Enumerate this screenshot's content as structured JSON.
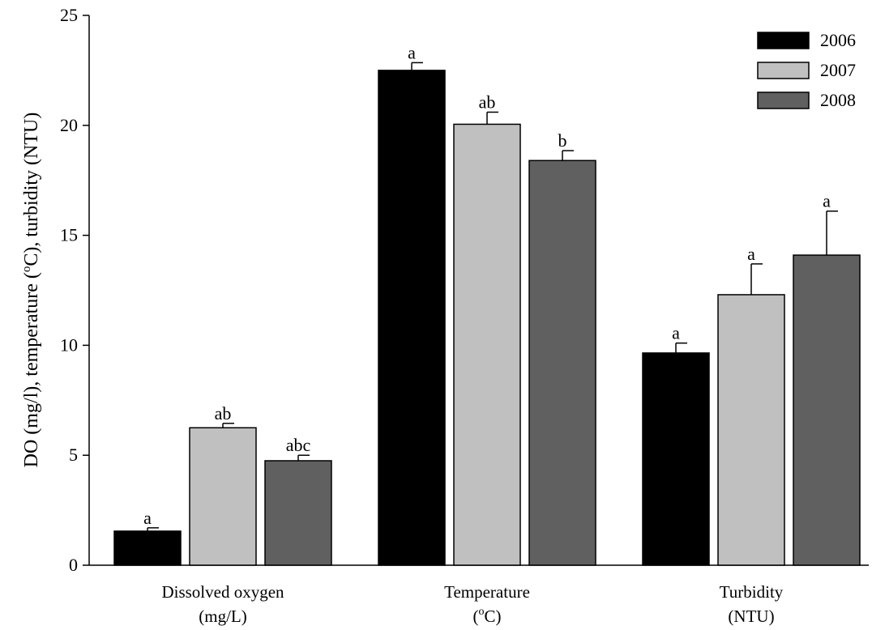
{
  "chart_data": {
    "type": "bar",
    "title": "",
    "ylabel_parts": [
      "DO (mg/l), temperature (",
      "o",
      "C), turbidity (NTU)"
    ],
    "ylim": [
      0,
      25
    ],
    "yticks": [
      0,
      5,
      10,
      15,
      20,
      25
    ],
    "categories": [
      {
        "line1": "Dissolved oxygen",
        "line2": "(mg/L)",
        "sup": "",
        "line2_after": ""
      },
      {
        "line1": "Temperature",
        "line2": "(",
        "sup": "o",
        "line2_after": "C)"
      },
      {
        "line1": "Turbidity",
        "line2": "(NTU)",
        "sup": "",
        "line2_after": ""
      }
    ],
    "series": [
      {
        "name": "2006",
        "color": "#000000",
        "values": [
          1.55,
          22.5,
          9.65
        ],
        "errors": [
          0.15,
          0.35,
          0.45
        ],
        "letters": [
          "a",
          "a",
          "a"
        ]
      },
      {
        "name": "2007",
        "color": "#c0c0c0",
        "values": [
          6.25,
          20.05,
          12.3
        ],
        "errors": [
          0.2,
          0.55,
          1.4
        ],
        "letters": [
          "ab",
          "ab",
          "a"
        ]
      },
      {
        "name": "2008",
        "color": "#606060",
        "values": [
          4.75,
          18.4,
          14.1
        ],
        "errors": [
          0.25,
          0.45,
          2.0
        ],
        "letters": [
          "abc",
          "b",
          "a"
        ]
      }
    ],
    "legend_position": "top-right",
    "grid": false
  }
}
